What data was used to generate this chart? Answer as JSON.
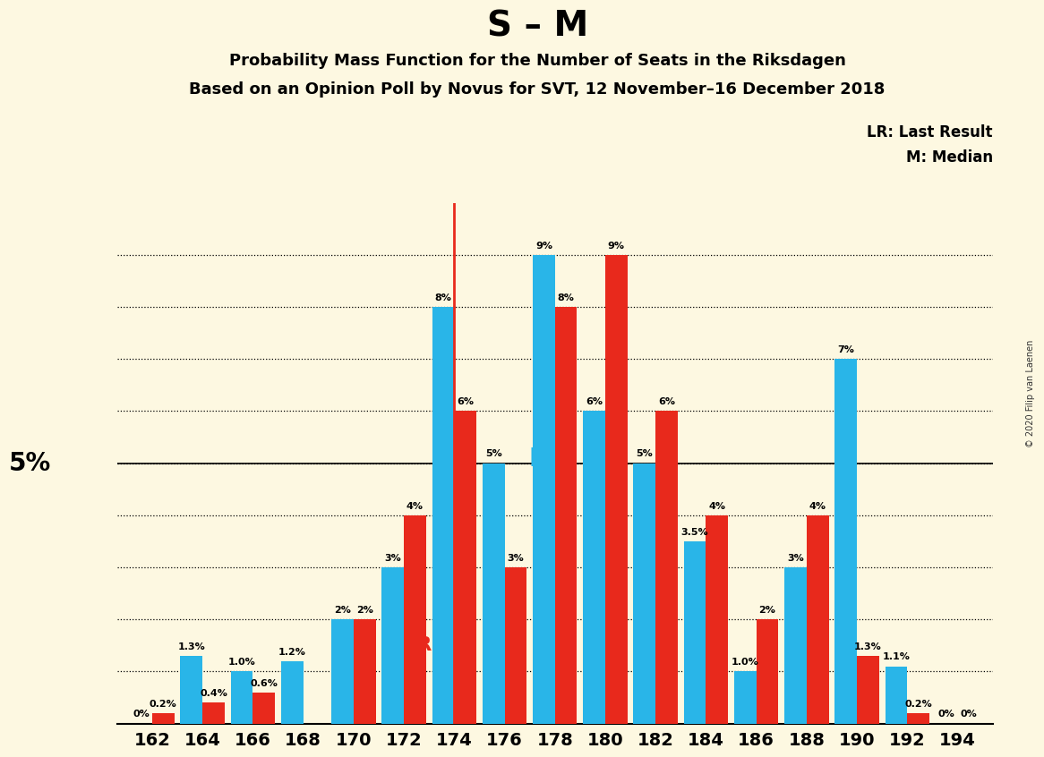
{
  "title": "S – M",
  "subtitle1": "Probability Mass Function for the Number of Seats in the Riksdagen",
  "subtitle2": "Based on an Opinion Poll by Novus for SVT, 12 November–16 December 2018",
  "copyright": "© 2020 Filip van Laenen",
  "legend_lr": "LR: Last Result",
  "legend_m": "M: Median",
  "background_color": "#fdf8e1",
  "bar_color_cyan": "#29b5e8",
  "bar_color_red": "#e8291c",
  "median_color": "#29b5e8",
  "lr_color": "#e8291c",
  "seats": [
    162,
    164,
    166,
    168,
    170,
    172,
    174,
    176,
    178,
    180,
    182,
    184,
    186,
    188,
    190,
    192,
    194
  ],
  "cyan_values": [
    0.0,
    1.3,
    1.0,
    1.2,
    2.0,
    3.0,
    8.0,
    5.0,
    9.0,
    6.0,
    5.0,
    3.5,
    1.0,
    3.0,
    7.0,
    1.1,
    0.0
  ],
  "red_values": [
    0.2,
    0.4,
    0.6,
    0.0,
    2.0,
    4.0,
    6.0,
    3.0,
    8.0,
    9.0,
    6.0,
    4.0,
    2.0,
    4.0,
    1.3,
    0.2,
    0.0
  ],
  "cyan_labels": [
    "0%",
    "1.3%",
    "1.0%",
    "1.2%",
    "2%",
    "3%",
    "8%",
    "5%",
    "9%",
    "6%",
    "5%",
    "3.5%",
    "1.0%",
    "3%",
    "7%",
    "1.1%",
    "0%"
  ],
  "red_labels": [
    "0.2%",
    "0.4%",
    "0.6%",
    "",
    "2%",
    "4%",
    "6%",
    "3%",
    "8%",
    "9%",
    "6%",
    "4%",
    "2%",
    "4%",
    "1.3%",
    "0.2%",
    "0%"
  ],
  "lr_seat": 174,
  "median_seat": 178,
  "ylim": [
    0,
    10
  ],
  "ylabel_5pct": "5%",
  "grid_values": [
    1,
    2,
    3,
    4,
    5,
    6,
    7,
    8,
    9
  ]
}
